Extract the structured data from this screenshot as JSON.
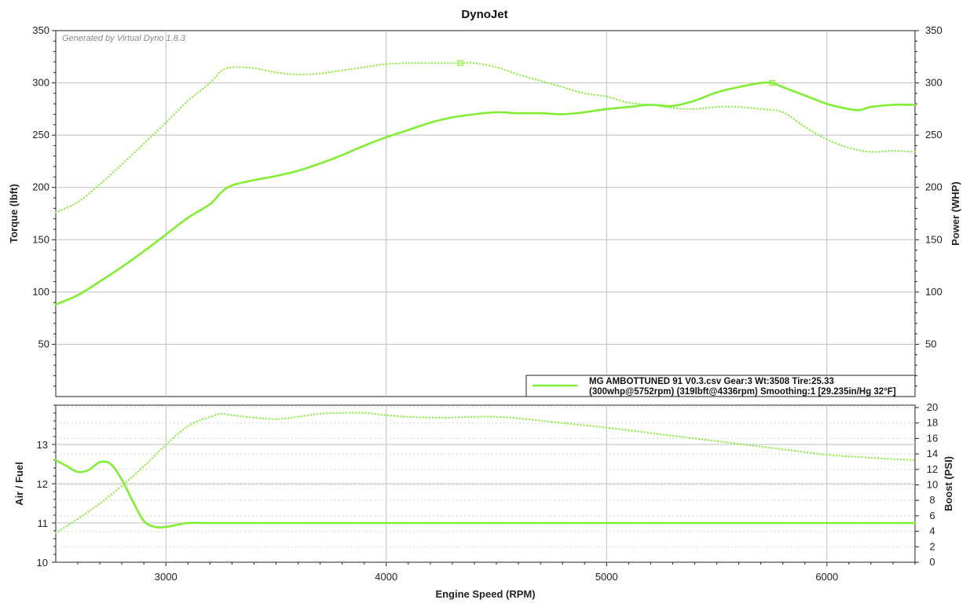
{
  "chart_data": [
    {
      "type": "line",
      "title": "DynoJet",
      "watermark": "Generated by Virtual Dyno 1.8.3",
      "xlabel": "Engine Speed (RPM)",
      "xlim": [
        2500,
        6400
      ],
      "x_ticks": [
        "3000",
        "4000",
        "5000",
        "6000"
      ],
      "ylabel": "Torque (lbft)",
      "ylim": [
        0,
        350
      ],
      "y_ticks": [
        "50",
        "100",
        "150",
        "200",
        "250",
        "300",
        "350"
      ],
      "y2label": "Power (WHP)",
      "y2lim": [
        0,
        350
      ],
      "y2_ticks": [
        "50",
        "100",
        "150",
        "200",
        "250",
        "300",
        "350"
      ],
      "grid": true,
      "legend_position": "bottom-right",
      "legend": {
        "line1": "MG AMBOTTUNED 91 V0.3.csv Gear:3 Wt:3508 Tire:25.33",
        "line2": "(300whp@5752rpm) (319lbft@4336rpm) Smoothing:1 [29.235in/Hg 32°F]"
      },
      "color": "#80ee33",
      "series": [
        {
          "name": "Power",
          "axis": "right",
          "style": "solid",
          "x": [
            2500,
            2600,
            2700,
            2800,
            2900,
            3000,
            3100,
            3200,
            3250,
            3300,
            3400,
            3500,
            3600,
            3700,
            3800,
            3900,
            4000,
            4100,
            4200,
            4300,
            4400,
            4500,
            4600,
            4700,
            4800,
            4900,
            5000,
            5100,
            5200,
            5300,
            5400,
            5500,
            5600,
            5700,
            5752,
            5800,
            5900,
            6000,
            6100,
            6150,
            6200,
            6300,
            6400
          ],
          "values": [
            88,
            97,
            110,
            124,
            139,
            155,
            171,
            184,
            195,
            202,
            207,
            211,
            216,
            223,
            231,
            240,
            248,
            255,
            262,
            267,
            270,
            272,
            271,
            271,
            270,
            272,
            275,
            277,
            279,
            278,
            283,
            291,
            296,
            300,
            300,
            296,
            288,
            280,
            275,
            274,
            277,
            279,
            279
          ],
          "marker": {
            "x": 5752,
            "y": 300
          }
        },
        {
          "name": "Torque",
          "axis": "left",
          "style": "dotted",
          "x": [
            2500,
            2600,
            2700,
            2800,
            2900,
            3000,
            3100,
            3200,
            3250,
            3300,
            3400,
            3500,
            3600,
            3700,
            3800,
            3900,
            4000,
            4100,
            4200,
            4336,
            4400,
            4500,
            4600,
            4700,
            4800,
            4900,
            5000,
            5100,
            5200,
            5300,
            5400,
            5500,
            5600,
            5700,
            5800,
            5900,
            6000,
            6100,
            6200,
            6300,
            6400
          ],
          "values": [
            176,
            186,
            203,
            222,
            242,
            262,
            283,
            300,
            311,
            315,
            314,
            310,
            308,
            309,
            312,
            315,
            318,
            319,
            319,
            319,
            319,
            315,
            308,
            302,
            296,
            290,
            287,
            281,
            279,
            276,
            275,
            277,
            277,
            275,
            272,
            258,
            246,
            238,
            234,
            235,
            234
          ],
          "marker": {
            "x": 4336,
            "y": 319
          }
        }
      ]
    },
    {
      "type": "line",
      "title": "",
      "xlabel": "Engine Speed (RPM)",
      "xlim": [
        2500,
        6400
      ],
      "x_ticks": [
        "3000",
        "4000",
        "5000",
        "6000"
      ],
      "ylabel": "Air / Fuel",
      "ylim": [
        10,
        14
      ],
      "y_ticks": [
        "10",
        "11",
        "12",
        "13"
      ],
      "y2label": "Boost (PSI)",
      "y2lim": [
        0,
        20.3
      ],
      "y2_ticks": [
        "0",
        "2",
        "4",
        "6",
        "8",
        "10",
        "12",
        "14",
        "16",
        "18",
        "20"
      ],
      "grid": true,
      "color": "#80ee33",
      "series": [
        {
          "name": "Air / Fuel",
          "axis": "left",
          "style": "solid",
          "x": [
            2500,
            2550,
            2600,
            2650,
            2700,
            2750,
            2800,
            2850,
            2900,
            2950,
            3000,
            3050,
            3100,
            3200,
            3400,
            3600,
            3800,
            4000,
            4500,
            5000,
            5500,
            6000,
            6400
          ],
          "values": [
            12.6,
            12.45,
            12.3,
            12.35,
            12.55,
            12.5,
            12.1,
            11.55,
            11.05,
            10.9,
            10.9,
            10.95,
            11.0,
            11.0,
            11.0,
            11.0,
            11.0,
            11.0,
            11.0,
            11.0,
            11.0,
            11.0,
            11.0
          ]
        },
        {
          "name": "Boost",
          "axis": "right",
          "style": "dotted",
          "x": [
            2500,
            2600,
            2700,
            2800,
            2900,
            3000,
            3100,
            3200,
            3250,
            3300,
            3400,
            3500,
            3600,
            3700,
            3800,
            3900,
            4000,
            4100,
            4200,
            4300,
            4400,
            4500,
            4600,
            4700,
            4800,
            4900,
            5000,
            5200,
            5400,
            5600,
            5800,
            6000,
            6200,
            6400
          ],
          "values": [
            3.8,
            5.6,
            7.6,
            9.9,
            12.4,
            15.2,
            17.6,
            18.8,
            19.2,
            19.0,
            18.7,
            18.5,
            18.8,
            19.2,
            19.3,
            19.3,
            19.0,
            18.8,
            18.7,
            18.7,
            18.8,
            18.8,
            18.6,
            18.3,
            18.0,
            17.7,
            17.4,
            16.7,
            16.0,
            15.3,
            14.6,
            13.9,
            13.5,
            13.2
          ]
        }
      ]
    }
  ]
}
